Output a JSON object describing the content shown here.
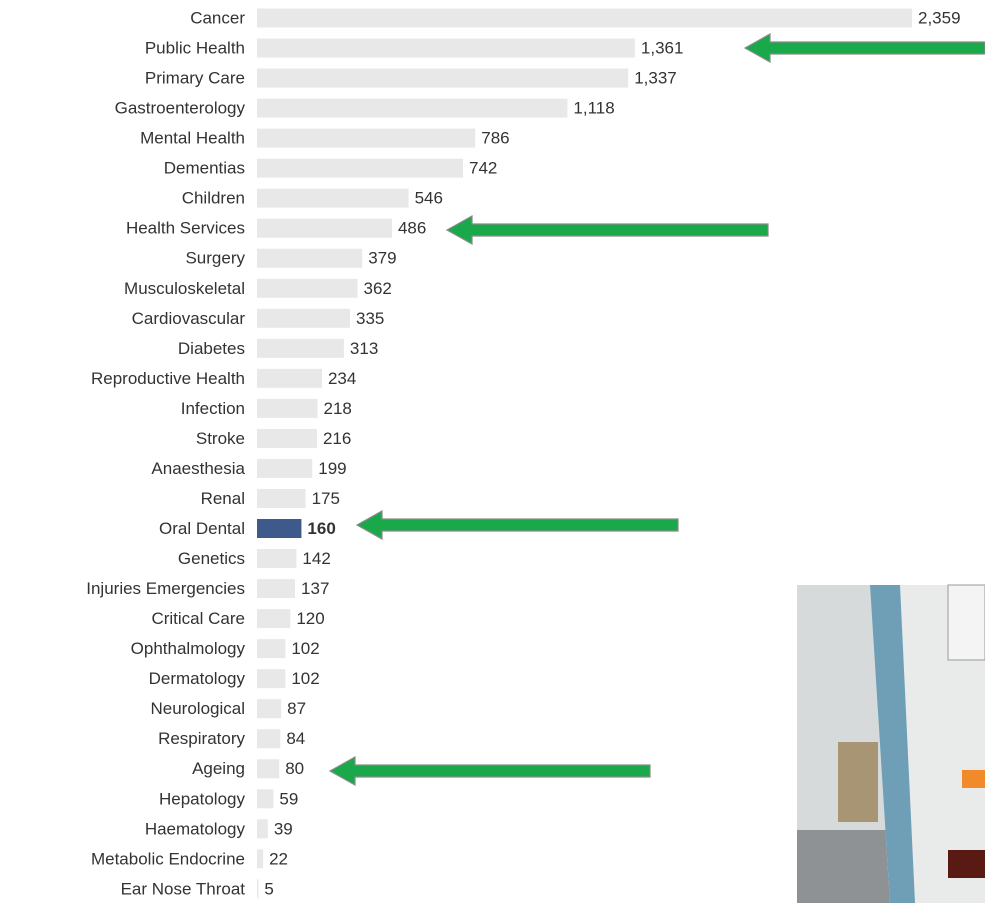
{
  "chart_data": {
    "type": "bar",
    "orientation": "horizontal",
    "categories": [
      "Cancer",
      "Public Health",
      "Primary Care",
      "Gastroenterology",
      "Mental Health",
      "Dementias",
      "Children",
      "Health Services",
      "Surgery",
      "Musculoskeletal",
      "Cardiovascular",
      "Diabetes",
      "Reproductive Health",
      "Infection",
      "Stroke",
      "Anaesthesia",
      "Renal",
      "Oral Dental",
      "Genetics",
      "Injuries Emergencies",
      "Critical Care",
      "Ophthalmology",
      "Dermatology",
      "Neurological",
      "Respiratory",
      "Ageing",
      "Hepatology",
      "Haematology",
      "Metabolic Endocrine",
      "Ear Nose Throat"
    ],
    "values": [
      2359,
      1361,
      1337,
      1118,
      786,
      742,
      546,
      486,
      379,
      362,
      335,
      313,
      234,
      218,
      216,
      199,
      175,
      160,
      142,
      137,
      120,
      102,
      102,
      87,
      84,
      80,
      59,
      39,
      22,
      5
    ],
    "value_labels": [
      "2,359",
      "1,361",
      "1,337",
      "1,118",
      "786",
      "742",
      "546",
      "486",
      "379",
      "362",
      "335",
      "313",
      "234",
      "218",
      "216",
      "199",
      "175",
      "160",
      "142",
      "137",
      "120",
      "102",
      "102",
      "87",
      "84",
      "80",
      "59",
      "39",
      "22",
      "5"
    ],
    "color": "#e8e8e8",
    "colors": [
      "#e8e8e8",
      "#e8e8e8",
      "#e8e8e8",
      "#e8e8e8",
      "#e8e8e8",
      "#e8e8e8",
      "#e8e8e8",
      "#e8e8e8",
      "#e8e8e8",
      "#e8e8e8",
      "#e8e8e8",
      "#e8e8e8",
      "#e8e8e8",
      "#e8e8e8",
      "#e8e8e8",
      "#e8e8e8",
      "#e8e8e8",
      "#3d5a8a",
      "#e8e8e8",
      "#e8e8e8",
      "#e8e8e8",
      "#e8e8e8",
      "#e8e8e8",
      "#e8e8e8",
      "#e8e8e8",
      "#e8e8e8",
      "#e8e8e8",
      "#e8e8e8",
      "#e8e8e8",
      "#e8e8e8"
    ]
  }
}
